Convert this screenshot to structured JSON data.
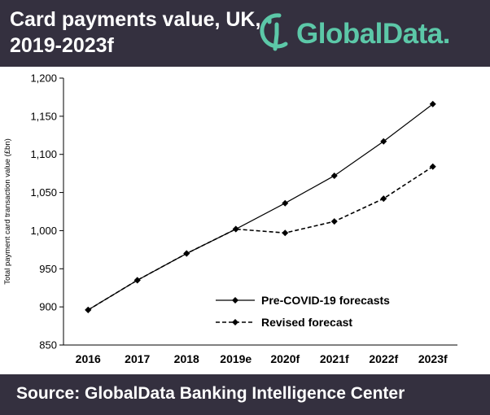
{
  "header": {
    "title_line1": "Card payments value, UK,",
    "title_line2": "2019-2023f",
    "logo_text": "GlobalData."
  },
  "footer": {
    "source": "Source:  GlobalData Banking Intelligence Center"
  },
  "colors": {
    "header_bg": "#34303f",
    "brand_teal": "#5cc8a8",
    "series": "#000000"
  },
  "chart_data": {
    "type": "line",
    "title": "Card payments value, UK, 2019-2023f",
    "xlabel": "",
    "ylabel": "Total payment card transaction value (£bn)",
    "categories": [
      "2016",
      "2017",
      "2018",
      "2019e",
      "2020f",
      "2021f",
      "2022f",
      "2023f"
    ],
    "ylim": [
      850,
      1200
    ],
    "yticks": [
      850,
      900,
      950,
      1000,
      1050,
      1100,
      1150,
      1200
    ],
    "ytick_labels": [
      "850",
      "900",
      "950",
      "1,000",
      "1,050",
      "1,100",
      "1,150",
      "1,200"
    ],
    "grid": false,
    "legend_position": "bottom-center",
    "series": [
      {
        "name": "Pre-COVID-19 forecasts",
        "style": "solid",
        "marker": "diamond",
        "values": [
          896,
          935,
          970,
          1002,
          1036,
          1072,
          1117,
          1166
        ]
      },
      {
        "name": "Revised forecast",
        "style": "dashed",
        "marker": "diamond",
        "values": [
          896,
          935,
          970,
          1002,
          997,
          1012,
          1042,
          1084
        ]
      }
    ]
  }
}
